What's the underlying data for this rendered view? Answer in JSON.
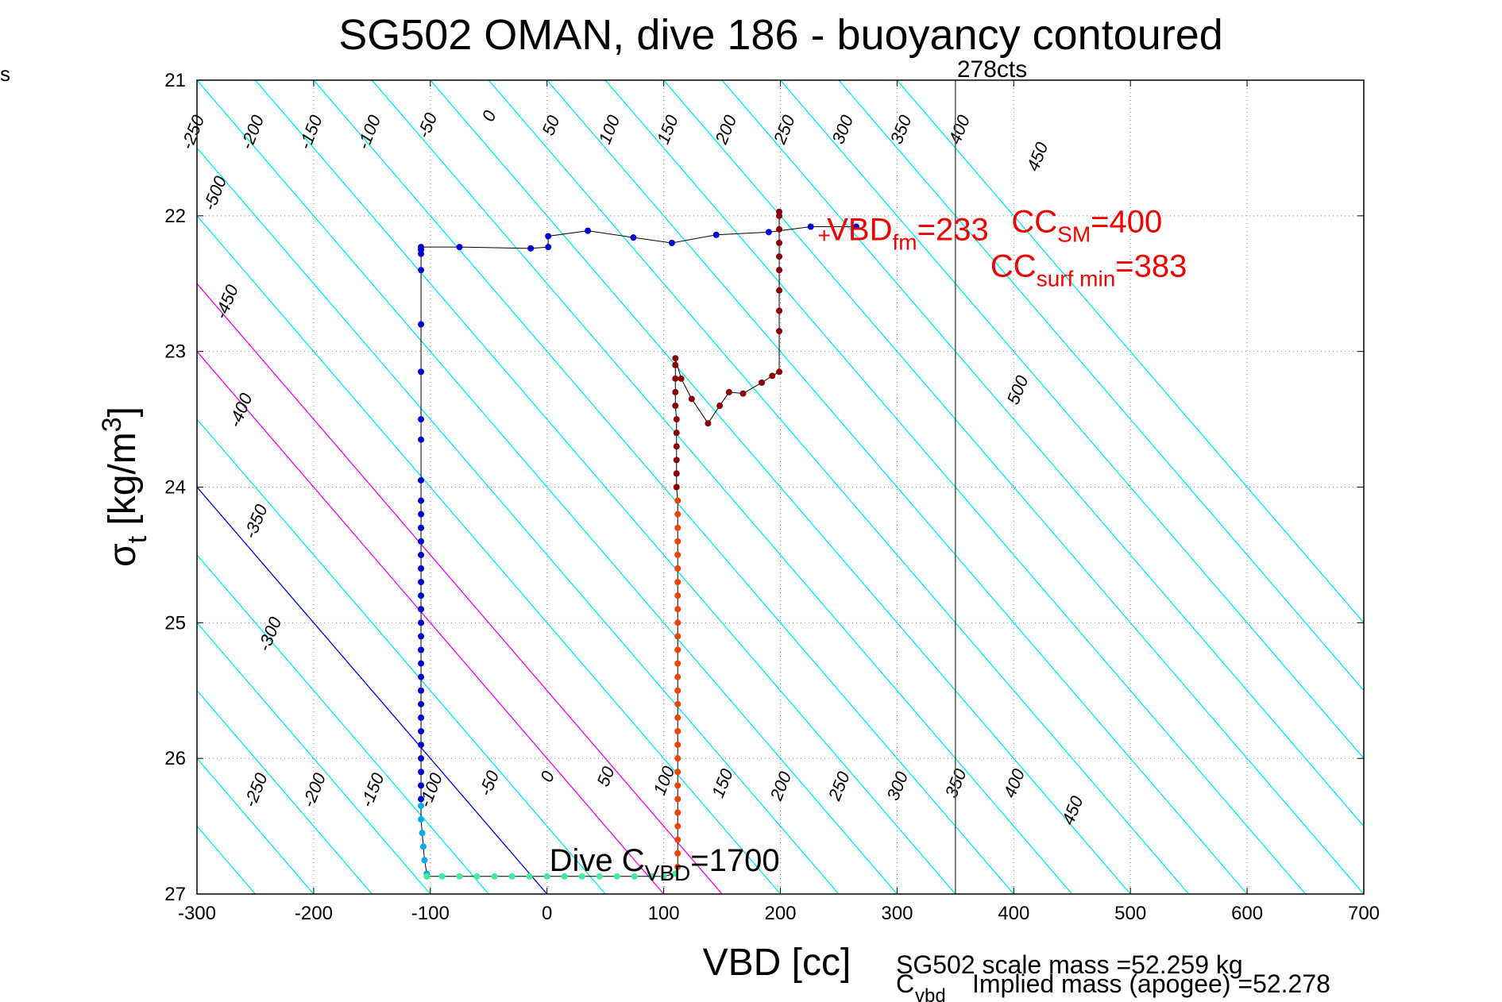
{
  "corner_label": "s",
  "chart_data": {
    "type": "scatter",
    "title": "SG502 OMAN, dive 186 - buoyancy contoured",
    "xlabel": "VBD [cc]",
    "ylabel": "σ_t [kg/m^3]",
    "xlim": [
      -300,
      700
    ],
    "ylim": [
      27,
      21
    ],
    "y_inverted": true,
    "grid": true,
    "x_ticks": [
      "-300",
      "-200",
      "-100",
      "0",
      "100",
      "200",
      "300",
      "400",
      "500",
      "600",
      "700"
    ],
    "y_ticks": [
      "21",
      "22",
      "23",
      "24",
      "25",
      "26",
      "27"
    ],
    "buoyancy_contours": {
      "color": "#00e5ee",
      "levels": [
        -500,
        -450,
        -400,
        -350,
        -300,
        -250,
        -200,
        -150,
        -100,
        -50,
        0,
        50,
        100,
        150,
        200,
        250,
        300,
        350,
        400,
        450,
        500
      ],
      "highlight": [
        {
          "level": 0,
          "color": "#0000dd"
        },
        {
          "level": 100,
          "color": "#ee00ee"
        },
        {
          "level": 150,
          "color": "#ee00ee"
        }
      ],
      "upper_labels": [
        {
          "text": "-500",
          "x": -280,
          "y": 21.85
        },
        {
          "text": "-450",
          "x": -270,
          "y": 22.65
        },
        {
          "text": "-400",
          "x": -258,
          "y": 23.45
        },
        {
          "text": "-350",
          "x": -245,
          "y": 24.27
        },
        {
          "text": "-300",
          "x": -233,
          "y": 25.1
        },
        {
          "text": "-250",
          "x": -299,
          "y": 21.4
        },
        {
          "text": "-200",
          "x": -248,
          "y": 21.4
        },
        {
          "text": "-150",
          "x": -198,
          "y": 21.4
        },
        {
          "text": "-100",
          "x": -148,
          "y": 21.4
        },
        {
          "text": "-50",
          "x": -98,
          "y": 21.35
        },
        {
          "text": "0",
          "x": -45,
          "y": 21.28
        },
        {
          "text": "50",
          "x": 8,
          "y": 21.35
        },
        {
          "text": "100",
          "x": 58,
          "y": 21.38
        },
        {
          "text": "150",
          "x": 108,
          "y": 21.38
        },
        {
          "text": "200",
          "x": 158,
          "y": 21.38
        },
        {
          "text": "250",
          "x": 208,
          "y": 21.38
        },
        {
          "text": "300",
          "x": 258,
          "y": 21.38
        },
        {
          "text": "350",
          "x": 308,
          "y": 21.38
        },
        {
          "text": "400",
          "x": 358,
          "y": 21.38
        },
        {
          "text": "450",
          "x": 425,
          "y": 21.58
        },
        {
          "text": "500",
          "x": 408,
          "y": 23.3
        }
      ],
      "lower_labels": [
        {
          "text": "-250",
          "x": -245,
          "y": 26.25
        },
        {
          "text": "-200",
          "x": -195,
          "y": 26.25
        },
        {
          "text": "-150",
          "x": -145,
          "y": 26.25
        },
        {
          "text": "-100",
          "x": -95,
          "y": 26.25
        },
        {
          "text": "-50",
          "x": -45,
          "y": 26.2
        },
        {
          "text": "0",
          "x": 5,
          "y": 26.15
        },
        {
          "text": "50",
          "x": 55,
          "y": 26.15
        },
        {
          "text": "100",
          "x": 105,
          "y": 26.18
        },
        {
          "text": "150",
          "x": 155,
          "y": 26.2
        },
        {
          "text": "200",
          "x": 205,
          "y": 26.22
        },
        {
          "text": "250",
          "x": 255,
          "y": 26.22
        },
        {
          "text": "300",
          "x": 305,
          "y": 26.22
        },
        {
          "text": "350",
          "x": 355,
          "y": 26.2
        },
        {
          "text": "400",
          "x": 405,
          "y": 26.2
        },
        {
          "text": "450",
          "x": 455,
          "y": 26.4
        }
      ]
    },
    "vertical_line": {
      "x": 350,
      "color": "#555555",
      "label": "278cts"
    },
    "dive_track": {
      "segments": [
        {
          "name": "descent",
          "color": "#0000cc",
          "points": [
            [
              265,
              22.08
            ],
            [
              226,
              22.08
            ],
            [
              190,
              22.12
            ],
            [
              145,
              22.14
            ],
            [
              107,
              22.2
            ],
            [
              74,
              22.16
            ],
            [
              35,
              22.11
            ],
            [
              1,
              22.15
            ],
            [
              1,
              22.23
            ],
            [
              -14,
              22.24
            ],
            [
              -75,
              22.23
            ],
            [
              -108,
              22.23
            ],
            [
              -108,
              22.25
            ],
            [
              -108,
              22.28
            ],
            [
              -108,
              22.4
            ],
            [
              -108,
              22.8
            ],
            [
              -108,
              23.15
            ],
            [
              -108,
              23.5
            ],
            [
              -108,
              23.65
            ],
            [
              -108,
              23.95
            ],
            [
              -108,
              24.1
            ],
            [
              -108,
              24.2
            ],
            [
              -108,
              24.3
            ],
            [
              -108,
              24.4
            ],
            [
              -108,
              24.5
            ],
            [
              -108,
              24.6
            ],
            [
              -108,
              24.7
            ],
            [
              -108,
              24.8
            ],
            [
              -108,
              24.9
            ],
            [
              -108,
              25.0
            ],
            [
              -108,
              25.1
            ],
            [
              -108,
              25.2
            ],
            [
              -108,
              25.3
            ],
            [
              -108,
              25.4
            ],
            [
              -108,
              25.5
            ],
            [
              -108,
              25.6
            ],
            [
              -108,
              25.7
            ],
            [
              -108,
              25.8
            ],
            [
              -108,
              25.9
            ],
            [
              -108,
              26.0
            ],
            [
              -108,
              26.1
            ],
            [
              -108,
              26.2
            ],
            [
              -108,
              26.3
            ]
          ]
        },
        {
          "name": "bottom",
          "color": "#00aaee",
          "points": [
            [
              -108,
              26.35
            ],
            [
              -108,
              26.45
            ],
            [
              -107,
              26.55
            ],
            [
              -106,
              26.65
            ],
            [
              -105,
              26.75
            ],
            [
              -103,
              26.85
            ]
          ]
        },
        {
          "name": "bottom-traverse",
          "color": "#44ee99",
          "points": [
            [
              -103,
              26.87
            ],
            [
              -90,
              26.87
            ],
            [
              -75,
              26.87
            ],
            [
              -60,
              26.87
            ],
            [
              -45,
              26.87
            ],
            [
              -30,
              26.87
            ],
            [
              -15,
              26.87
            ],
            [
              0,
              26.87
            ],
            [
              15,
              26.87
            ],
            [
              30,
              26.87
            ],
            [
              45,
              26.87
            ],
            [
              60,
              26.87
            ],
            [
              75,
              26.87
            ],
            [
              90,
              26.87
            ],
            [
              100,
              26.87
            ],
            [
              110,
              26.85
            ]
          ]
        },
        {
          "name": "climb-low",
          "color": "#ee4400",
          "points": [
            [
              112,
              26.8
            ],
            [
              112,
              26.7
            ],
            [
              112,
              26.6
            ],
            [
              112,
              26.5
            ],
            [
              112,
              26.4
            ],
            [
              112,
              26.3
            ],
            [
              112,
              26.2
            ],
            [
              112,
              26.1
            ],
            [
              112,
              26.0
            ],
            [
              112,
              25.9
            ],
            [
              112,
              25.8
            ],
            [
              112,
              25.7
            ],
            [
              112,
              25.6
            ],
            [
              112,
              25.5
            ],
            [
              112,
              25.4
            ],
            [
              112,
              25.3
            ],
            [
              112,
              25.2
            ],
            [
              112,
              25.1
            ],
            [
              112,
              25.0
            ],
            [
              112,
              24.9
            ],
            [
              112,
              24.8
            ],
            [
              112,
              24.7
            ],
            [
              112,
              24.6
            ],
            [
              112,
              24.5
            ],
            [
              112,
              24.4
            ],
            [
              112,
              24.3
            ],
            [
              112,
              24.2
            ],
            [
              112,
              24.1
            ]
          ]
        },
        {
          "name": "climb-high",
          "color": "#880000",
          "points": [
            [
              111,
              24.0
            ],
            [
              111,
              23.9
            ],
            [
              111,
              23.8
            ],
            [
              111,
              23.7
            ],
            [
              111,
              23.6
            ],
            [
              111,
              23.5
            ],
            [
              110,
              23.4
            ],
            [
              110,
              23.3
            ],
            [
              110,
              23.2
            ],
            [
              110,
              23.1
            ],
            [
              110,
              23.05
            ],
            [
              115,
              23.2
            ],
            [
              124,
              23.35
            ],
            [
              138,
              23.53
            ],
            [
              148,
              23.4
            ],
            [
              156,
              23.3
            ],
            [
              168,
              23.31
            ],
            [
              184,
              23.23
            ],
            [
              193,
              23.18
            ],
            [
              199,
              23.15
            ],
            [
              199,
              22.85
            ],
            [
              199,
              22.7
            ],
            [
              199,
              22.55
            ],
            [
              199,
              22.4
            ],
            [
              199,
              22.3
            ],
            [
              199,
              22.2
            ],
            [
              199,
              22.1
            ],
            [
              199,
              22.0
            ],
            [
              199,
              21.97
            ]
          ]
        }
      ]
    },
    "annotations": [
      {
        "text": "+",
        "x": 232,
        "y": 22.2,
        "color": "#ee0000"
      },
      {
        "text": "VBD",
        "sub": "fm",
        "suffix": "=233",
        "x": 240,
        "y": 22.18,
        "color": "#ee0000"
      },
      {
        "text": "CC",
        "sub": "SM",
        "suffix": "=400",
        "x": 398,
        "y": 22.12,
        "color": "#ee0000"
      },
      {
        "text": "CC",
        "sub": "surf min",
        "suffix": "=383",
        "x": 380,
        "y": 22.45,
        "color": "#ee0000"
      },
      {
        "text": "Dive C",
        "sub": "VBD",
        "suffix": "=1700",
        "x": 2,
        "y": 26.83,
        "color": "#000000"
      }
    ],
    "footer_lines": [
      "SG502 scale mass =52.259 kg",
      "C",
      "vbd",
      "Implied mass (apogee) =52.278"
    ]
  }
}
